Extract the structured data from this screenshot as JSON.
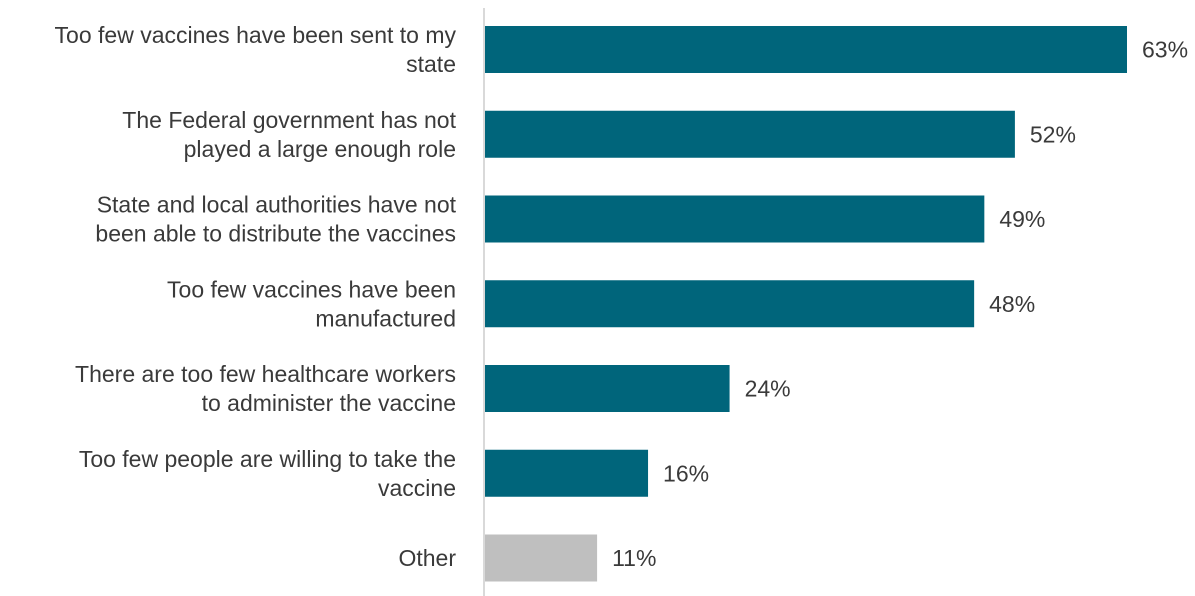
{
  "chart_data": {
    "type": "bar",
    "orientation": "horizontal",
    "categories": [
      [
        "Too few vaccines have been sent to my",
        "state"
      ],
      [
        "The Federal government has not",
        "played a large enough role"
      ],
      [
        "State and local authorities have not",
        "been able to distribute the vaccines"
      ],
      [
        "Too few vaccines have been",
        "manufactured"
      ],
      [
        "There are too few healthcare workers",
        "to administer the vaccine"
      ],
      [
        "Too few people are willing to take the",
        "vaccine"
      ],
      [
        "Other"
      ]
    ],
    "values": [
      63,
      52,
      49,
      48,
      24,
      16,
      11
    ],
    "value_labels": [
      "63%",
      "52%",
      "49%",
      "48%",
      "24%",
      "16%",
      "11%"
    ],
    "value_unit": "%",
    "colors": [
      "#00657b",
      "#00657b",
      "#00657b",
      "#00657b",
      "#00657b",
      "#00657b",
      "#bfbfbf"
    ],
    "axis_color": "#d9d9d9",
    "title": "",
    "xlabel": "",
    "ylabel": "",
    "xlim": [
      0,
      63
    ],
    "grid": false,
    "legend": "none"
  }
}
